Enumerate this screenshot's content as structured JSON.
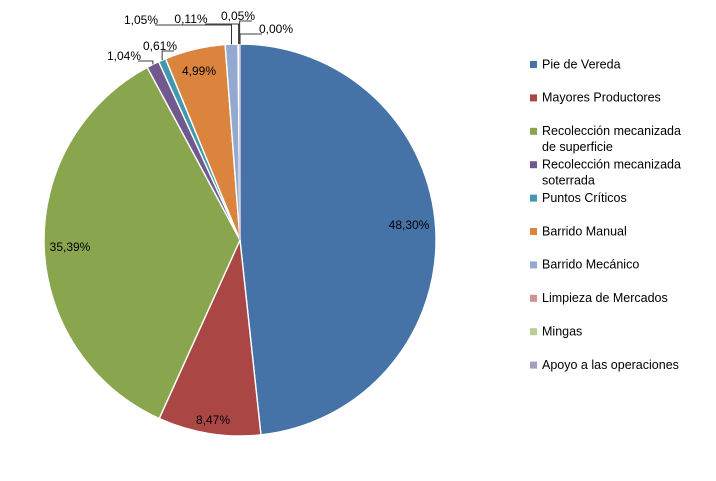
{
  "chart_data": {
    "type": "pie",
    "legend_position": "right",
    "slices": [
      {
        "label": [
          "Pie de Vereda"
        ],
        "value": 48.3,
        "value_label": "48,30%",
        "color": "#4572A7"
      },
      {
        "label": [
          "Mayores Productores"
        ],
        "value": 8.47,
        "value_label": "8,47%",
        "color": "#AA4643"
      },
      {
        "label": [
          "Recolección mecanizada",
          "de superficie"
        ],
        "value": 35.39,
        "value_label": "35,39%",
        "color": "#89A54E"
      },
      {
        "label": [
          "Recolección mecanizada",
          "soterrada"
        ],
        "value": 1.04,
        "value_label": "1,04%",
        "color": "#71588F"
      },
      {
        "label": [
          "Puntos Críticos"
        ],
        "value": 0.61,
        "value_label": "0,61%",
        "color": "#4198AF"
      },
      {
        "label": [
          "Barrido Manual"
        ],
        "value": 4.99,
        "value_label": "4,99%",
        "color": "#DB843D"
      },
      {
        "label": [
          "Barrido Mecánico"
        ],
        "value": 1.05,
        "value_label": "1,05%",
        "color": "#93A9CF"
      },
      {
        "label": [
          "Limpieza de Mercados"
        ],
        "value": 0.11,
        "value_label": "0,11%",
        "color": "#D19392"
      },
      {
        "label": [
          "Mingas"
        ],
        "value": 0.05,
        "value_label": "0,05%",
        "color": "#B9CD96"
      },
      {
        "label": [
          "Apoyo a las operaciones"
        ],
        "value": 0.0,
        "value_label": "0,00%",
        "color": "#A99BBD"
      }
    ]
  }
}
